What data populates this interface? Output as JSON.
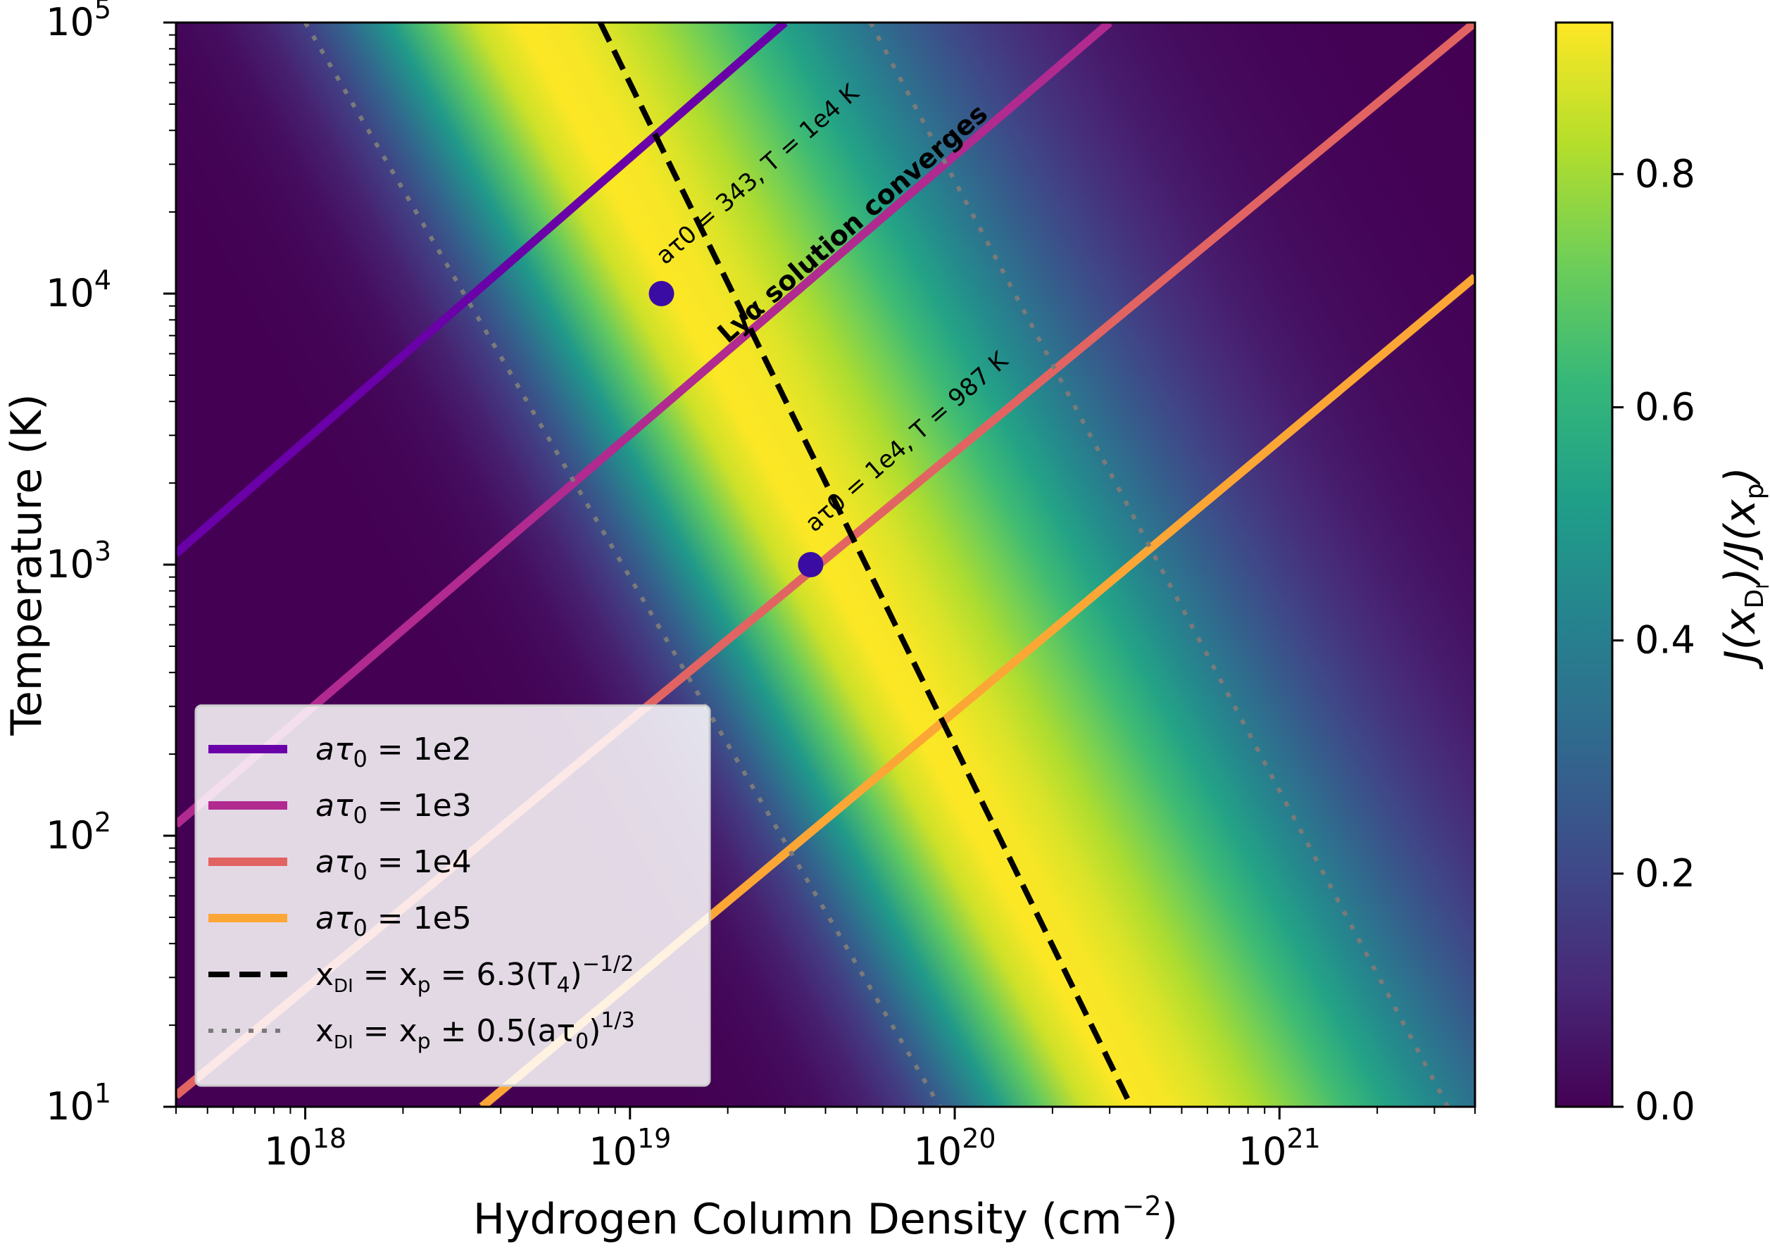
{
  "colors": {
    "viridis": [
      "#440154",
      "#482878",
      "#3e4a89",
      "#31688e",
      "#26828e",
      "#1f9e89",
      "#35b779",
      "#6ece58",
      "#b5de2b",
      "#fde725"
    ],
    "series": {
      "a1e2": "#6a00a8",
      "a1e3": "#b12a90",
      "a1e4": "#e16462",
      "a1e5": "#fca636",
      "peak": "#000000",
      "width": "#808080"
    },
    "marker": "#3a0ca3"
  },
  "chart_data": {
    "type": "heatmap",
    "xlabel": "Hydrogen Column Density",
    "xlabel_unit": "(cm",
    "xlabel_unit_sup": "−2",
    "xlabel_unit_close": ")",
    "ylabel": "Temperature  (K)",
    "xscale": "log",
    "yscale": "log",
    "xlim": [
      4e+17,
      4e+21
    ],
    "ylim": [
      10,
      100000
    ],
    "x_ticks": [
      {
        "base": "10",
        "exp": "18",
        "value": 1e+18
      },
      {
        "base": "10",
        "exp": "19",
        "value": 1e+19
      },
      {
        "base": "10",
        "exp": "20",
        "value": 1e+20
      },
      {
        "base": "10",
        "exp": "21",
        "value": 1e+21
      }
    ],
    "y_ticks": [
      {
        "base": "10",
        "exp": "1",
        "value": 10
      },
      {
        "base": "10",
        "exp": "2",
        "value": 100
      },
      {
        "base": "10",
        "exp": "3",
        "value": 1000
      },
      {
        "base": "10",
        "exp": "4",
        "value": 10000
      },
      {
        "base": "10",
        "exp": "5",
        "value": 100000
      }
    ],
    "heatmap": {
      "description_values": "J(x_DI)/J(x_p), peaked along x_DI = x_p",
      "ridge_points": [
        [
          1e+19,
          20000
        ],
        [
          3.5e+20,
          10
        ]
      ],
      "vmin": 0.0,
      "vmax": 0.93
    },
    "colorbar": {
      "label_parts": [
        "J(x",
        "D",
        "I",
        ")/J(x",
        "p",
        ")"
      ],
      "ticks": [
        {
          "label": "0.0",
          "value": 0.0
        },
        {
          "label": "0.2",
          "value": 0.2
        },
        {
          "label": "0.4",
          "value": 0.4
        },
        {
          "label": "0.6",
          "value": 0.6
        },
        {
          "label": "0.8",
          "value": 0.8
        }
      ],
      "range": [
        0.0,
        0.93
      ]
    },
    "series": [
      {
        "name": "aτ0 = 1e2",
        "key": "a1e2",
        "style": "solid",
        "points": [
          [
            4e+17,
            1100
          ],
          [
            3e+19,
            100000
          ]
        ]
      },
      {
        "name": "aτ0 = 1e3",
        "key": "a1e3",
        "style": "solid",
        "points": [
          [
            4e+17,
            110
          ],
          [
            3e+20,
            100000
          ]
        ]
      },
      {
        "name": "aτ0 = 1e4",
        "key": "a1e4",
        "style": "solid",
        "points": [
          [
            4e+17,
            11
          ],
          [
            4e+21,
            100000
          ]
        ]
      },
      {
        "name": "aτ0 = 1e5",
        "key": "a1e5",
        "style": "solid",
        "points": [
          [
            3.5e+18,
            10
          ],
          [
            4e+21,
            11500
          ]
        ]
      },
      {
        "name": "x_DI = x_p = 6.3(T4)^-1/2",
        "key": "peak",
        "style": "dashed",
        "points": [
          [
            8.1e+18,
            100000
          ],
          [
            3.5e+20,
            10
          ]
        ]
      },
      {
        "name": "x_DI = x_p ± 0.5(aτ0)^1/3",
        "key": "width",
        "style": "dotted",
        "points": [
          [
            1e+18,
            100000
          ],
          [
            9e+19,
            10
          ]
        ]
      },
      {
        "name": "",
        "key": "width",
        "style": "dotted",
        "points": [
          [
            5.5e+19,
            100000
          ],
          [
            3.3e+21,
            10
          ]
        ]
      }
    ],
    "markers": [
      {
        "x": 1.25e+19,
        "y": 10000
      },
      {
        "x": 3.6e+19,
        "y": 1000
      }
    ],
    "annotations": {
      "a1": {
        "text": "aτ0 = 343, T = 1e4 K",
        "x": 1.25e+19,
        "y": 10000
      },
      "a2": {
        "text": "aτ0 = 1e4, T = 987 K",
        "x": 3.6e+19,
        "y": 1000
      },
      "bold": {
        "text": "Lyα solution converges",
        "x": 2e+19,
        "y": 6500
      }
    },
    "legend": {
      "placement": "lower-left",
      "entries": [
        {
          "key": "a1e2",
          "style": "solid",
          "parts": [
            "aτ",
            "0",
            " = 1e2"
          ]
        },
        {
          "key": "a1e3",
          "style": "solid",
          "parts": [
            "aτ",
            "0",
            " = 1e3"
          ]
        },
        {
          "key": "a1e4",
          "style": "solid",
          "parts": [
            "aτ",
            "0",
            " = 1e4"
          ]
        },
        {
          "key": "a1e5",
          "style": "solid",
          "parts": [
            "aτ",
            "0",
            " = 1e5"
          ]
        },
        {
          "key": "peak",
          "style": "dashed",
          "parts": [
            "x",
            "DI",
            " = x",
            "p",
            " = 6.3(T",
            "4",
            ")",
            "−1/2"
          ]
        },
        {
          "key": "width",
          "style": "dotted",
          "parts": [
            "x",
            "DI",
            " = x",
            "p",
            " ± 0.5(aτ",
            "0",
            ")",
            "1/3"
          ]
        }
      ]
    }
  }
}
